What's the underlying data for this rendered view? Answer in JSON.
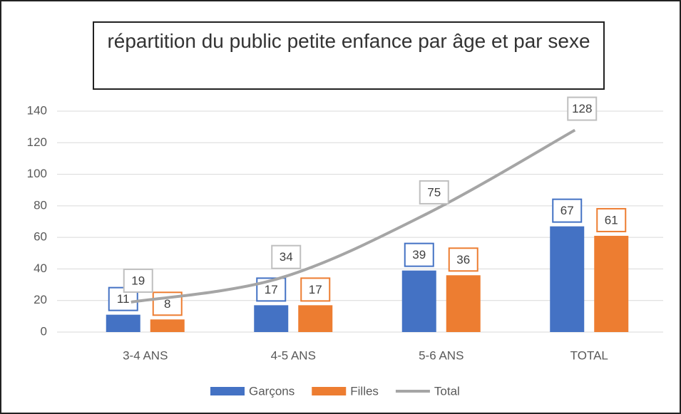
{
  "chart_data": {
    "type": "bar",
    "title": "répartition du public petite enfance par âge et par sexe",
    "categories": [
      "3-4 ANS",
      "4-5 ANS",
      "5-6 ANS",
      "TOTAL"
    ],
    "series": [
      {
        "name": "Garçons",
        "color": "#4472c4",
        "values": [
          11,
          17,
          39,
          67
        ]
      },
      {
        "name": "Filles",
        "color": "#ed7d31",
        "values": [
          8,
          17,
          36,
          61
        ]
      },
      {
        "name": "Total",
        "color": "#a5a5a5",
        "type": "line",
        "values": [
          19,
          34,
          75,
          128
        ]
      }
    ],
    "ylim": [
      0,
      140
    ],
    "yticks": [
      0,
      20,
      40,
      60,
      80,
      100,
      120,
      140
    ],
    "grid": true,
    "legend": "bottom"
  }
}
